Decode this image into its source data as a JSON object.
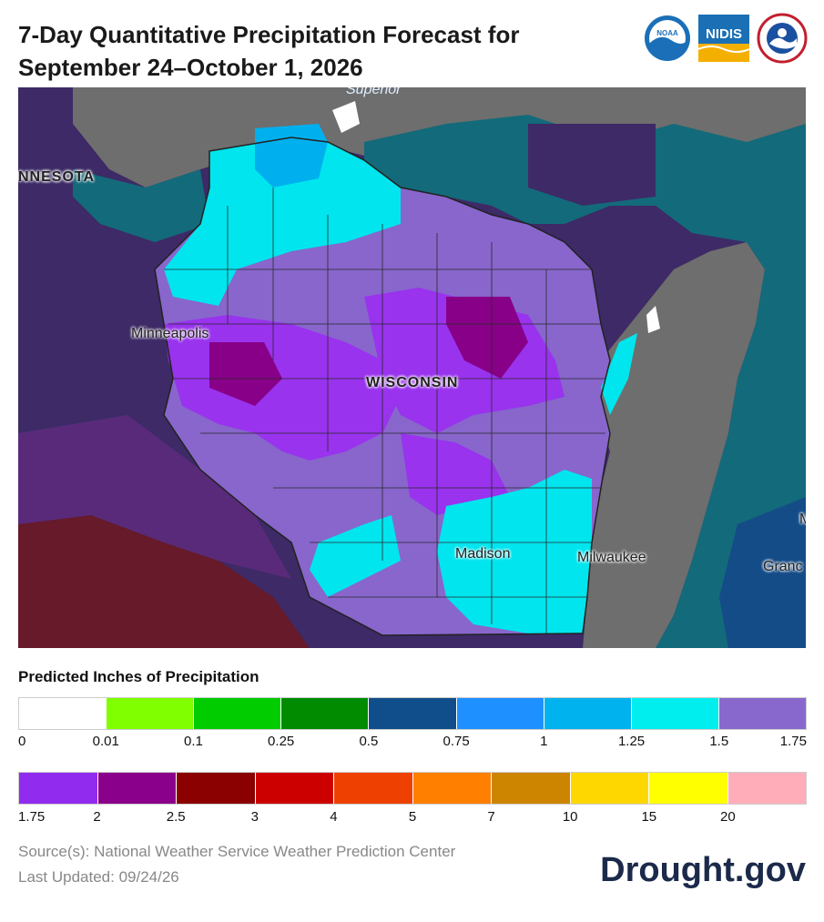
{
  "header": {
    "title_line1": "7-Day Quantitative Precipitation Forecast for",
    "title_line2": "September 24–October 1, 2026"
  },
  "logos": [
    {
      "name": "noaa-logo",
      "text": "NOAA"
    },
    {
      "name": "nidis-logo",
      "text": "NIDIS"
    },
    {
      "name": "nws-logo",
      "text": ""
    }
  ],
  "map": {
    "labels": {
      "superior": "Superior",
      "minnesota": "NNESOTA",
      "minneapolis": "Minneapolis",
      "wisconsin": "WISCONSIN",
      "madison": "Madison",
      "milwaukee": "Milwaukee",
      "grand": "Granc",
      "edge_m": "M"
    },
    "colors": {
      "water": "#6e6e6e",
      "teal": "#136a7a",
      "cyan": "#00e5ee",
      "light_blue": "#00b0ee",
      "lavender": "#8866cc",
      "violet": "#9933ee",
      "purple": "#880088",
      "dark_purple": "#3d2a66",
      "maroon": "#661a2a",
      "dark_blue": "#144c88"
    }
  },
  "legend": {
    "title": "Predicted Inches of Precipitation",
    "row1": {
      "colors": [
        "#ffffff",
        "#7fff00",
        "#00cc00",
        "#008b00",
        "#104e8b",
        "#1e90ff",
        "#00b2ee",
        "#00eeee",
        "#8968cd"
      ],
      "ticks": [
        "0",
        "0.01",
        "0.1",
        "0.25",
        "0.5",
        "0.75",
        "1",
        "1.25",
        "1.5",
        "1.75"
      ]
    },
    "row2": {
      "colors": [
        "#912cee",
        "#8b008b",
        "#8b0000",
        "#cd0000",
        "#ee4000",
        "#ff7f00",
        "#cd8500",
        "#ffd700",
        "#ffff00",
        "#ffaeb9"
      ],
      "ticks": [
        "1.75",
        "2",
        "2.5",
        "3",
        "4",
        "5",
        "7",
        "10",
        "15",
        "20"
      ]
    }
  },
  "footer": {
    "source": "Source(s): National Weather Service Weather Prediction Center",
    "updated": "Last Updated: 09/24/26",
    "brand": "Drought.gov"
  }
}
